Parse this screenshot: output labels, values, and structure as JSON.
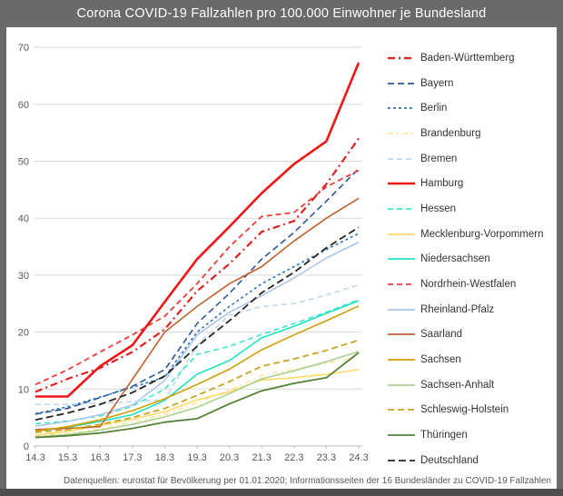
{
  "header": {
    "title": "Corona COVID-19 Fallzahlen pro 100.000 Einwohner je Bundesland"
  },
  "footer": {
    "text": "Datenquellen: eurostat für Bevölkerung per 01.01.2020; Informationsseiten der 16 Bundesländer zu COVID-19 Fallzahlen"
  },
  "colors": {
    "frame": "#6a6a6a",
    "bottom_bar": "#4d4d4d",
    "grid": "#d9d9d9",
    "axis": "#bfbfbf",
    "tick_label": "#595959",
    "legend_label": "#333333"
  },
  "chart_data": {
    "type": "line",
    "title": "Corona COVID-19 Fallzahlen pro 100.000 Einwohner je Bundesland",
    "xlabel": "",
    "ylabel": "",
    "x_tick_labels": [
      "14.3",
      "15.3",
      "16.3",
      "17.3",
      "18.3",
      "19.3",
      "20.3",
      "21.3",
      "22.3",
      "23.3",
      "24.3"
    ],
    "y_ticks": [
      0,
      10,
      20,
      30,
      40,
      50,
      60,
      70
    ],
    "ylim": [
      0,
      70
    ],
    "grid": true,
    "legend_position": "right",
    "series": [
      {
        "name": "Baden-Württemberg",
        "color": "#e02020",
        "dash": "8 4 2 4",
        "width": 2.2,
        "values": [
          9.5,
          11.8,
          13.7,
          16.5,
          20.5,
          27.2,
          32.0,
          37.6,
          39.5,
          46.0,
          54.0
        ]
      },
      {
        "name": "Bayern",
        "color": "#2f5597",
        "dash": "7 4",
        "width": 1.6,
        "values": [
          5.6,
          6.6,
          8.5,
          10.5,
          13.4,
          21.5,
          26.8,
          32.8,
          37.5,
          43.0,
          48.7
        ]
      },
      {
        "name": "Berlin",
        "color": "#2e75b6",
        "dash": "3 3",
        "width": 1.6,
        "values": [
          5.7,
          6.9,
          8.6,
          10.3,
          12.1,
          20.0,
          24.5,
          28.5,
          31.5,
          34.5,
          37.3
        ]
      },
      {
        "name": "Brandenburg",
        "color": "#ffe699",
        "dash": "6 4 2 4",
        "width": 1.6,
        "values": [
          1.8,
          2.2,
          3.0,
          4.2,
          5.5,
          7.6,
          9.8,
          12.4,
          13.5,
          14.5,
          15.7
        ]
      },
      {
        "name": "Bremen",
        "color": "#bdd7ee",
        "dash": "6 4",
        "width": 1.6,
        "values": [
          7.3,
          7.3,
          7.5,
          7.8,
          8.1,
          17.7,
          23.0,
          24.5,
          25.0,
          26.5,
          28.3
        ]
      },
      {
        "name": "Hamburg",
        "color": "#f01414",
        "dash": "",
        "width": 2.6,
        "values": [
          8.7,
          8.7,
          14.0,
          17.7,
          25.3,
          32.8,
          38.5,
          44.4,
          49.5,
          53.5,
          67.3
        ]
      },
      {
        "name": "Hessen",
        "color": "#3be8c8",
        "dash": "6 4",
        "width": 1.6,
        "values": [
          3.9,
          4.4,
          5.3,
          7.0,
          10.0,
          16.1,
          17.5,
          19.6,
          21.5,
          23.5,
          25.7
        ]
      },
      {
        "name": "Mecklenburg-Vorpommern",
        "color": "#ffd966",
        "dash": "",
        "width": 1.6,
        "values": [
          1.9,
          2.6,
          3.6,
          4.7,
          6.0,
          8.1,
          9.5,
          11.6,
          12.0,
          12.6,
          13.4
        ]
      },
      {
        "name": "Niedersachsen",
        "color": "#1fe0c4",
        "dash": "",
        "width": 1.6,
        "values": [
          2.6,
          3.3,
          4.3,
          5.5,
          8.0,
          12.6,
          15.0,
          19.0,
          21.0,
          23.3,
          25.5
        ]
      },
      {
        "name": "Nordrhein-Westfalen",
        "color": "#ed3b3b",
        "dash": "6 4",
        "width": 1.8,
        "values": [
          10.8,
          13.4,
          16.5,
          19.5,
          22.8,
          28.5,
          35.0,
          40.3,
          41.0,
          45.5,
          48.4
        ]
      },
      {
        "name": "Rheinland-Pfalz",
        "color": "#aec6e8",
        "dash": "",
        "width": 1.6,
        "values": [
          3.5,
          4.3,
          5.5,
          7.2,
          11.5,
          19.5,
          23.5,
          26.4,
          29.5,
          33.0,
          35.8
        ]
      },
      {
        "name": "Saarland",
        "color": "#c0612b",
        "dash": "",
        "width": 1.6,
        "values": [
          2.9,
          3.1,
          3.4,
          11.7,
          20.0,
          24.5,
          28.5,
          31.5,
          36.0,
          40.0,
          43.5
        ]
      },
      {
        "name": "Sachsen",
        "color": "#d19c00",
        "dash": "",
        "width": 1.6,
        "values": [
          2.6,
          3.4,
          4.6,
          6.2,
          8.3,
          10.8,
          13.5,
          16.9,
          19.5,
          22.0,
          24.6
        ]
      },
      {
        "name": "Sachsen-Anhalt",
        "color": "#a9d18e",
        "dash": "",
        "width": 1.6,
        "values": [
          1.6,
          2.0,
          2.8,
          3.8,
          5.1,
          6.8,
          9.2,
          11.8,
          13.2,
          14.8,
          16.6
        ]
      },
      {
        "name": "Schleswig-Holstein",
        "color": "#c9a227",
        "dash": "7 4",
        "width": 1.8,
        "values": [
          2.4,
          2.9,
          3.8,
          5.0,
          6.6,
          8.9,
          11.3,
          14.0,
          15.3,
          16.8,
          18.6
        ]
      },
      {
        "name": "Thüringen",
        "color": "#538135",
        "dash": "",
        "width": 1.8,
        "values": [
          1.5,
          1.8,
          2.3,
          3.1,
          4.2,
          4.8,
          7.4,
          9.7,
          11.0,
          12.0,
          16.4
        ]
      },
      {
        "name": "Deutschland",
        "color": "#262626",
        "dash": "8 4",
        "width": 1.8,
        "values": [
          4.6,
          5.8,
          7.3,
          9.4,
          12.3,
          17.5,
          22.0,
          26.9,
          30.5,
          34.8,
          38.4
        ]
      }
    ]
  }
}
